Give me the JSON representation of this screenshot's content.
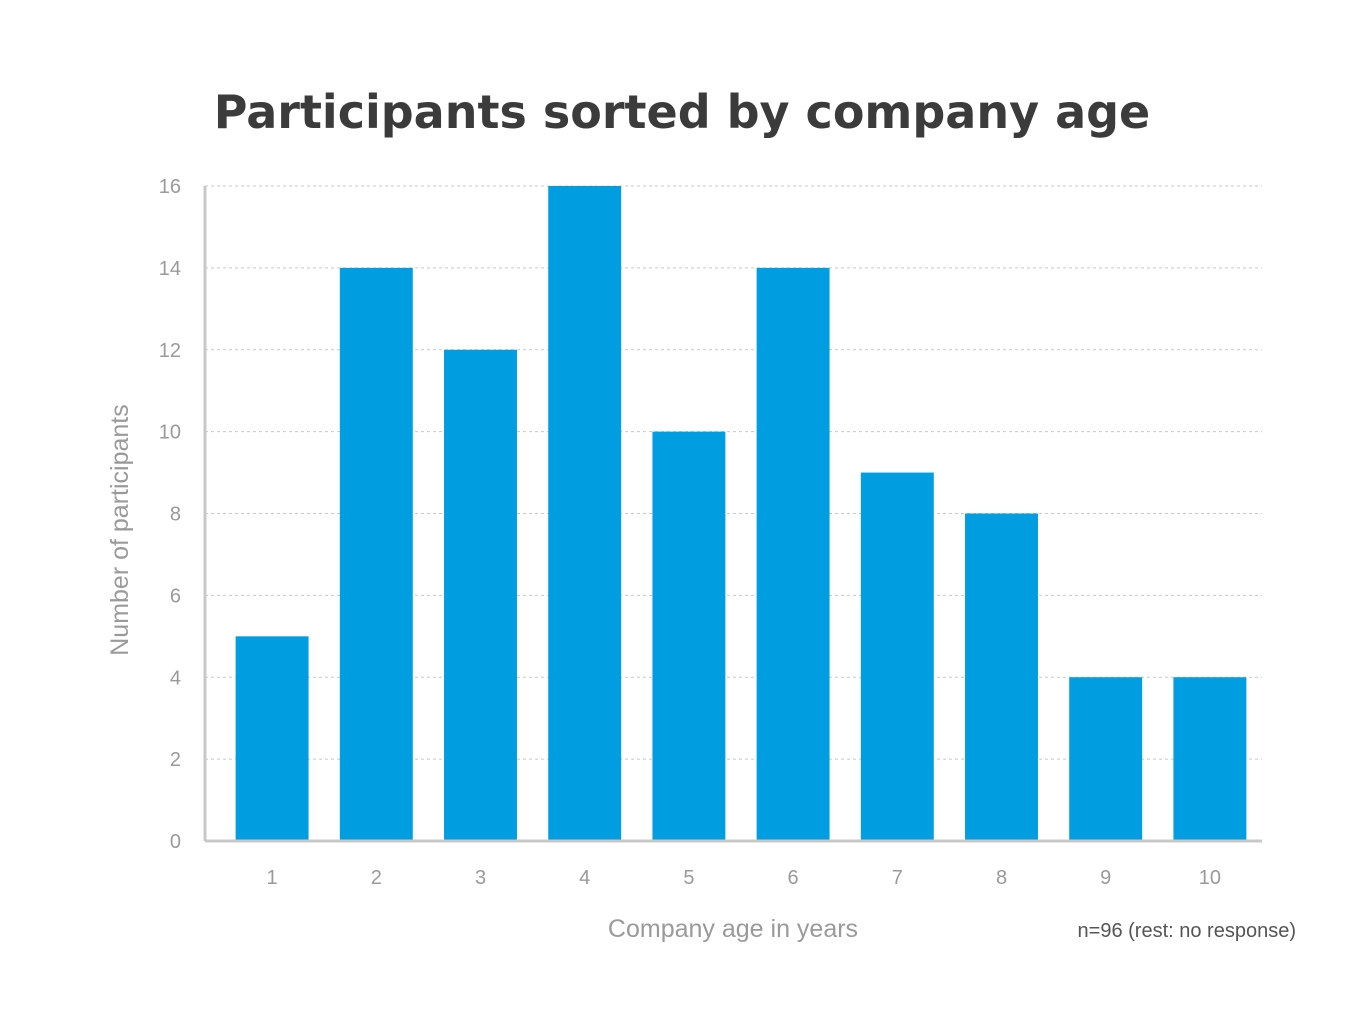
{
  "chart_data": {
    "type": "bar",
    "title": "Participants sorted by company age",
    "xlabel": "Company age in years",
    "ylabel": "Number of participants",
    "note": "n=96 (rest: no response)",
    "categories": [
      "1",
      "2",
      "3",
      "4",
      "5",
      "6",
      "7",
      "8",
      "9",
      "10"
    ],
    "values": [
      5,
      14,
      12,
      16,
      10,
      14,
      9,
      8,
      4,
      4
    ],
    "yticks": [
      "0",
      "2",
      "4",
      "6",
      "8",
      "10",
      "12",
      "14",
      "16"
    ],
    "ylim": [
      0,
      16
    ],
    "grid": true,
    "legend": "none",
    "bar_color": "#009ee0"
  }
}
